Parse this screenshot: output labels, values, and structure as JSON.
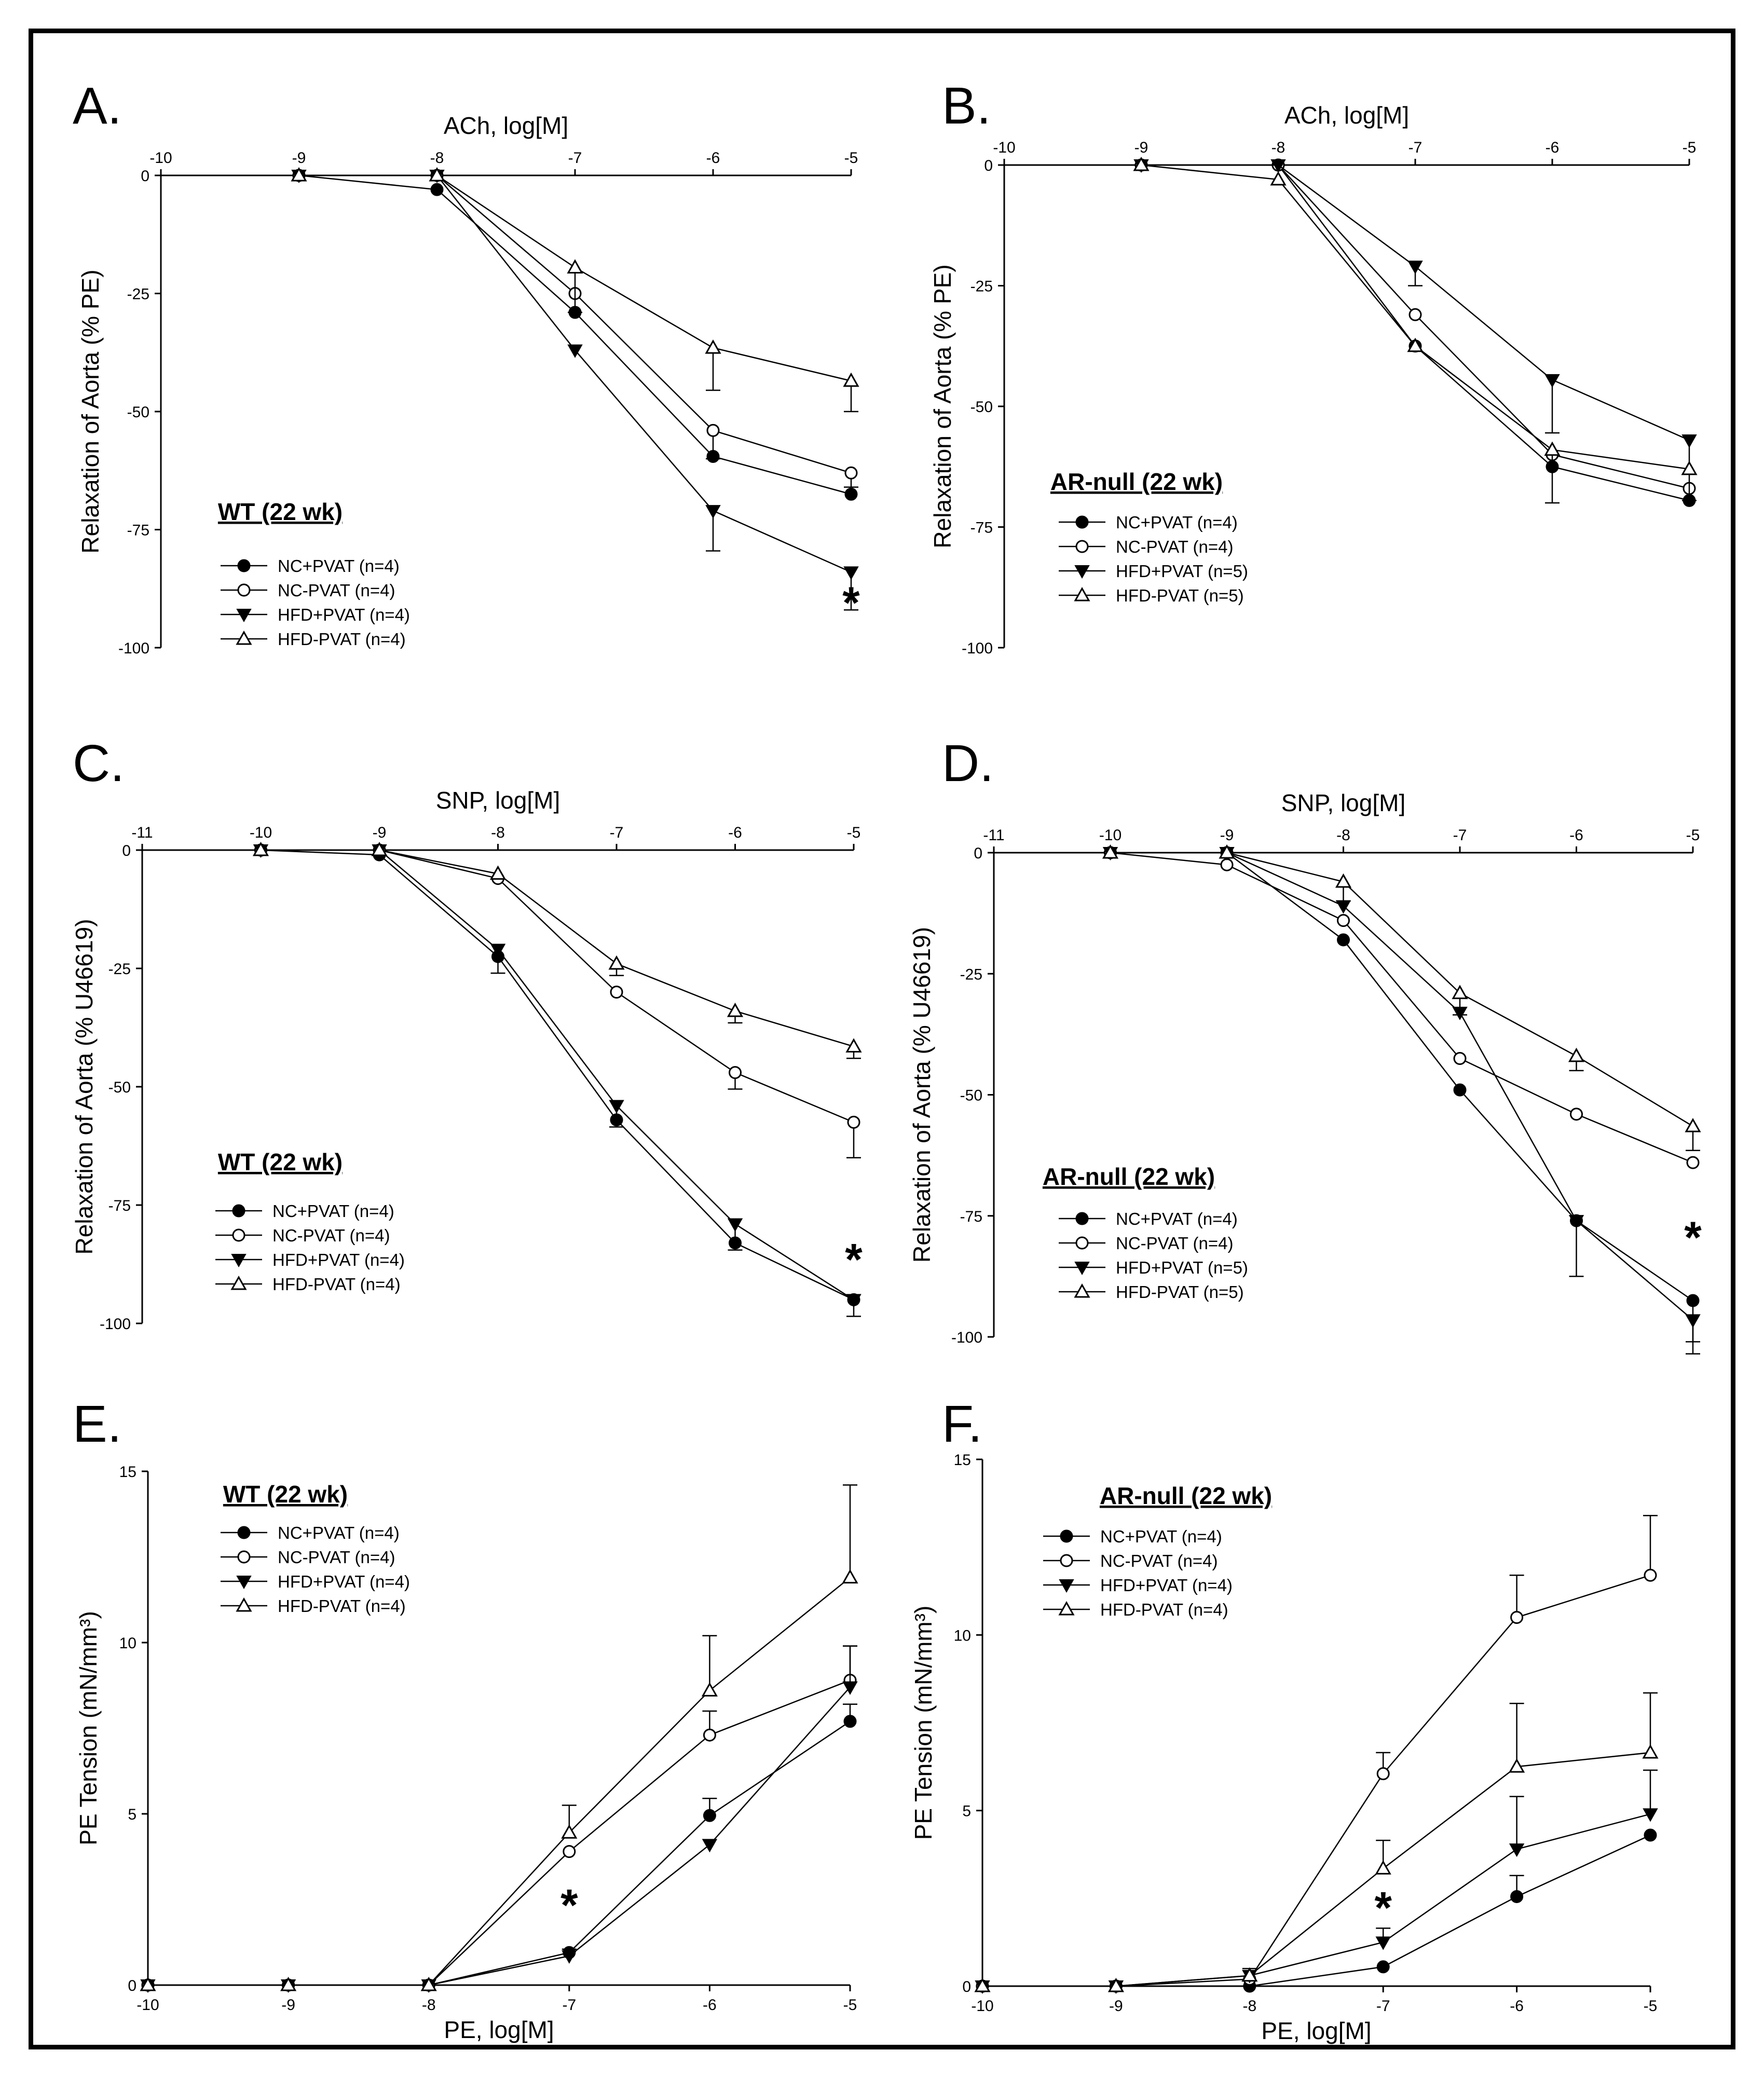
{
  "figure": {
    "panels": [
      {
        "id": "A",
        "letter": "A.",
        "legend_title": "WT (22 wk)",
        "chart_data": {
          "type": "line",
          "xlabel": "ACh, log[M]",
          "ylabel": "Relaxation of Aorta (% PE)",
          "xlim": [
            -10,
            -5
          ],
          "ylim": [
            -100,
            0
          ],
          "xticks": [
            -10,
            -9,
            -8,
            -7,
            -6,
            -5
          ],
          "yticks": [
            0,
            -25,
            -50,
            -75,
            -100
          ],
          "x_axis_position": "top",
          "series": [
            {
              "name": "NC+PVAT (n=4)",
              "marker": "filled-circle",
              "x": [
                -9,
                -8,
                -7,
                -6,
                -5
              ],
              "y": [
                0,
                -3,
                -29,
                -59.5,
                -67.5
              ],
              "err": [
                0,
                0,
                0,
                0,
                0
              ]
            },
            {
              "name": "NC-PVAT (n=4)",
              "marker": "open-circle",
              "x": [
                -9,
                -8,
                -7,
                -6,
                -5
              ],
              "y": [
                0,
                0,
                -25,
                -54,
                -63
              ],
              "err": [
                0,
                0,
                0,
                6,
                3
              ]
            },
            {
              "name": "HFD+PVAT (n=4)",
              "marker": "filled-triangle-down",
              "x": [
                -9,
                -8,
                -7,
                -6,
                -5
              ],
              "y": [
                0,
                0,
                -37,
                -71,
                -84
              ],
              "err": [
                0,
                0,
                0,
                8.5,
                8
              ]
            },
            {
              "name": "HFD-PVAT (n=4)",
              "marker": "open-triangle-up",
              "x": [
                -9,
                -8,
                -7,
                -6,
                -5
              ],
              "y": [
                0,
                0,
                -19.5,
                -36.5,
                -43.5
              ],
              "err": [
                0,
                0,
                9.5,
                9,
                6.5
              ]
            }
          ],
          "annotations": [
            {
              "text": "*",
              "x": -5,
              "y": -90
            }
          ]
        }
      },
      {
        "id": "B",
        "letter": "B.",
        "legend_title": "AR-null (22 wk)",
        "chart_data": {
          "type": "line",
          "xlabel": "ACh, log[M]",
          "ylabel": "Relaxation of Aorta (% PE)",
          "xlim": [
            -10,
            -5
          ],
          "ylim": [
            -100,
            0
          ],
          "xticks": [
            -10,
            -9,
            -8,
            -7,
            -6,
            -5
          ],
          "yticks": [
            0,
            -25,
            -50,
            -75,
            -100
          ],
          "x_axis_position": "top",
          "series": [
            {
              "name": "NC+PVAT (n=4)",
              "marker": "filled-circle",
              "x": [
                -9,
                -8,
                -7,
                -6,
                -5
              ],
              "y": [
                0,
                0,
                -37.5,
                -62.5,
                -69.5
              ],
              "err": [
                0,
                0,
                0,
                0,
                0
              ]
            },
            {
              "name": "NC-PVAT (n=4)",
              "marker": "open-circle",
              "x": [
                -9,
                -8,
                -7,
                -6,
                -5
              ],
              "y": [
                0,
                0,
                -31,
                -60,
                -67
              ],
              "err": [
                0,
                0,
                0,
                0,
                0
              ]
            },
            {
              "name": "HFD+PVAT (n=5)",
              "marker": "filled-triangle-down",
              "x": [
                -9,
                -8,
                -7,
                -6,
                -5
              ],
              "y": [
                0,
                0,
                -21,
                -44.5,
                -57
              ],
              "err": [
                0,
                0,
                4,
                11,
                12.5
              ]
            },
            {
              "name": "HFD-PVAT (n=5)",
              "marker": "open-triangle-up",
              "x": [
                -9,
                -8,
                -7,
                -6,
                -5
              ],
              "y": [
                0,
                -3,
                -37.5,
                -59,
                -63
              ],
              "err": [
                0,
                0,
                0,
                11,
                0
              ]
            }
          ],
          "annotations": []
        }
      },
      {
        "id": "C",
        "letter": "C.",
        "legend_title": "WT (22 wk)",
        "chart_data": {
          "type": "line",
          "xlabel": "SNP, log[M]",
          "ylabel": "Relaxation of Aorta (% U46619)",
          "xlim": [
            -11,
            -5
          ],
          "ylim": [
            -100,
            0
          ],
          "xticks": [
            -11,
            -10,
            -9,
            -8,
            -7,
            -6,
            -5
          ],
          "yticks": [
            0,
            -25,
            -50,
            -75,
            -100
          ],
          "x_axis_position": "top",
          "series": [
            {
              "name": "NC+PVAT (n=4)",
              "marker": "filled-circle",
              "x": [
                -10,
                -9,
                -8,
                -7,
                -6,
                -5
              ],
              "y": [
                0,
                -1,
                -22.5,
                -57,
                -83,
                -95
              ],
              "err": [
                0,
                0,
                0,
                0,
                0,
                0
              ]
            },
            {
              "name": "NC-PVAT (n=4)",
              "marker": "open-circle",
              "x": [
                -10,
                -9,
                -8,
                -7,
                -6,
                -5
              ],
              "y": [
                0,
                0,
                -6,
                -30,
                -47,
                -57.5
              ],
              "err": [
                0,
                0,
                0,
                0,
                3.5,
                7.5
              ]
            },
            {
              "name": "HFD+PVAT (n=4)",
              "marker": "filled-triangle-down",
              "x": [
                -10,
                -9,
                -8,
                -7,
                -6,
                -5
              ],
              "y": [
                0,
                0,
                -21,
                -54,
                -79,
                -95
              ],
              "err": [
                0,
                0,
                5,
                4.5,
                5.5,
                3.5
              ]
            },
            {
              "name": "HFD-PVAT (n=4)",
              "marker": "open-triangle-up",
              "x": [
                -10,
                -9,
                -8,
                -7,
                -6,
                -5
              ],
              "y": [
                0,
                0,
                -5,
                -24,
                -34,
                -41.5
              ],
              "err": [
                0,
                0,
                0,
                2.5,
                2.5,
                2.5
              ]
            }
          ],
          "annotations": [
            {
              "text": "*",
              "x": -5,
              "y": -86
            }
          ]
        }
      },
      {
        "id": "D",
        "letter": "D.",
        "legend_title": "AR-null (22 wk)",
        "chart_data": {
          "type": "line",
          "xlabel": "SNP, log[M]",
          "ylabel": "Relaxation of Aorta (% U46619)",
          "xlim": [
            -11,
            -5
          ],
          "ylim": [
            -100,
            0
          ],
          "xticks": [
            -11,
            -10,
            -9,
            -8,
            -7,
            -6,
            -5
          ],
          "yticks": [
            0,
            -25,
            -50,
            -75,
            -100
          ],
          "x_axis_position": "top",
          "series": [
            {
              "name": "NC+PVAT (n=4)",
              "marker": "filled-circle",
              "x": [
                -10,
                -9,
                -8,
                -7,
                -6,
                -5
              ],
              "y": [
                0,
                0,
                -18,
                -49,
                -76,
                -92.5
              ],
              "err": [
                0,
                0,
                0,
                0,
                0,
                8.5
              ]
            },
            {
              "name": "NC-PVAT (n=4)",
              "marker": "open-circle",
              "x": [
                -10,
                -9,
                -8,
                -7,
                -6,
                -5
              ],
              "y": [
                0,
                -2.5,
                -14,
                -42.5,
                -54,
                -64
              ],
              "err": [
                0,
                0,
                0,
                0,
                0,
                0
              ]
            },
            {
              "name": "HFD+PVAT (n=5)",
              "marker": "filled-triangle-down",
              "x": [
                -10,
                -9,
                -8,
                -7,
                -6,
                -5
              ],
              "y": [
                0,
                0,
                -11,
                -33,
                -76,
                -96.5
              ],
              "err": [
                0,
                0,
                0,
                0,
                11.5,
                7
              ]
            },
            {
              "name": "HFD-PVAT (n=5)",
              "marker": "open-triangle-up",
              "x": [
                -10,
                -9,
                -8,
                -7,
                -6,
                -5
              ],
              "y": [
                0,
                0,
                -6,
                -29,
                -42,
                -56.5
              ],
              "err": [
                0,
                0,
                4,
                4.5,
                3,
                5
              ]
            }
          ],
          "annotations": [
            {
              "text": "*",
              "x": -5,
              "y": -79
            }
          ]
        }
      },
      {
        "id": "E",
        "letter": "E.",
        "legend_title": "WT (22 wk)",
        "chart_data": {
          "type": "line",
          "xlabel": "PE, log[M]",
          "ylabel": "PE Tension (mN/mm³)",
          "xlim": [
            -10,
            -5
          ],
          "ylim": [
            0,
            15
          ],
          "xticks": [
            -10,
            -9,
            -8,
            -7,
            -6,
            -5
          ],
          "yticks": [
            0,
            5,
            10,
            15
          ],
          "x_axis_position": "bottom",
          "series": [
            {
              "name": "NC+PVAT (n=4)",
              "marker": "filled-circle",
              "x": [
                -10,
                -9,
                -8,
                -7,
                -6,
                -5
              ],
              "y": [
                0,
                0,
                0,
                0.95,
                4.95,
                7.7
              ],
              "err": [
                0,
                0,
                0,
                0,
                0.5,
                0.5
              ]
            },
            {
              "name": "NC-PVAT (n=4)",
              "marker": "open-circle",
              "x": [
                -10,
                -9,
                -8,
                -7,
                -6,
                -5
              ],
              "y": [
                0,
                0,
                0,
                3.9,
                7.3,
                8.9
              ],
              "err": [
                0,
                0,
                0,
                0,
                0.7,
                1
              ]
            },
            {
              "name": "HFD+PVAT (n=4)",
              "marker": "filled-triangle-down",
              "x": [
                -10,
                -9,
                -8,
                -7,
                -6,
                -5
              ],
              "y": [
                0,
                0,
                0,
                0.85,
                4.1,
                8.7
              ],
              "err": [
                0,
                0,
                0,
                0.2,
                0,
                1.2
              ]
            },
            {
              "name": "HFD-PVAT (n=4)",
              "marker": "open-triangle-up",
              "x": [
                -10,
                -9,
                -8,
                -7,
                -6,
                -5
              ],
              "y": [
                0,
                0,
                0,
                4.45,
                8.6,
                11.9
              ],
              "err": [
                0,
                0,
                0,
                0.8,
                1.6,
                2.7
              ]
            }
          ],
          "annotations": [
            {
              "text": "*",
              "x": -7,
              "y": 2.4
            }
          ]
        }
      },
      {
        "id": "F",
        "letter": "F.",
        "legend_title": "AR-null (22 wk)",
        "chart_data": {
          "type": "line",
          "xlabel": "PE, log[M]",
          "ylabel": "PE Tension (mN/mm³)",
          "xlim": [
            -10,
            -5
          ],
          "ylim": [
            0,
            15
          ],
          "xticks": [
            -10,
            -9,
            -8,
            -7,
            -6,
            -5
          ],
          "yticks": [
            0,
            5,
            10,
            15
          ],
          "x_axis_position": "bottom",
          "series": [
            {
              "name": "NC+PVAT (n=4)",
              "marker": "filled-circle",
              "x": [
                -10,
                -9,
                -8,
                -7,
                -6,
                -5
              ],
              "y": [
                0,
                0,
                0,
                0.55,
                2.55,
                4.3
              ],
              "err": [
                0,
                0,
                0,
                0,
                0.6,
                0
              ]
            },
            {
              "name": "NC-PVAT (n=4)",
              "marker": "open-circle",
              "x": [
                -10,
                -9,
                -8,
                -7,
                -6,
                -5
              ],
              "y": [
                0,
                0,
                0.2,
                6.05,
                10.5,
                11.7
              ],
              "err": [
                0,
                0,
                0.3,
                0.6,
                1.2,
                1.7
              ]
            },
            {
              "name": "HFD+PVAT (n=4)",
              "marker": "filled-triangle-down",
              "x": [
                -10,
                -9,
                -8,
                -7,
                -6,
                -5
              ],
              "y": [
                0,
                0,
                0.3,
                1.25,
                3.9,
                4.9
              ],
              "err": [
                0,
                0,
                0,
                0.4,
                1.5,
                1.25
              ]
            },
            {
              "name": "HFD-PVAT (n=4)",
              "marker": "open-triangle-up",
              "x": [
                -10,
                -9,
                -8,
                -7,
                -6,
                -5
              ],
              "y": [
                0,
                0,
                0.3,
                3.35,
                6.25,
                6.65
              ],
              "err": [
                0,
                0,
                0,
                0.8,
                1.8,
                1.7
              ]
            }
          ],
          "annotations": [
            {
              "text": "*",
              "x": -7,
              "y": 2.3
            }
          ]
        }
      }
    ]
  }
}
